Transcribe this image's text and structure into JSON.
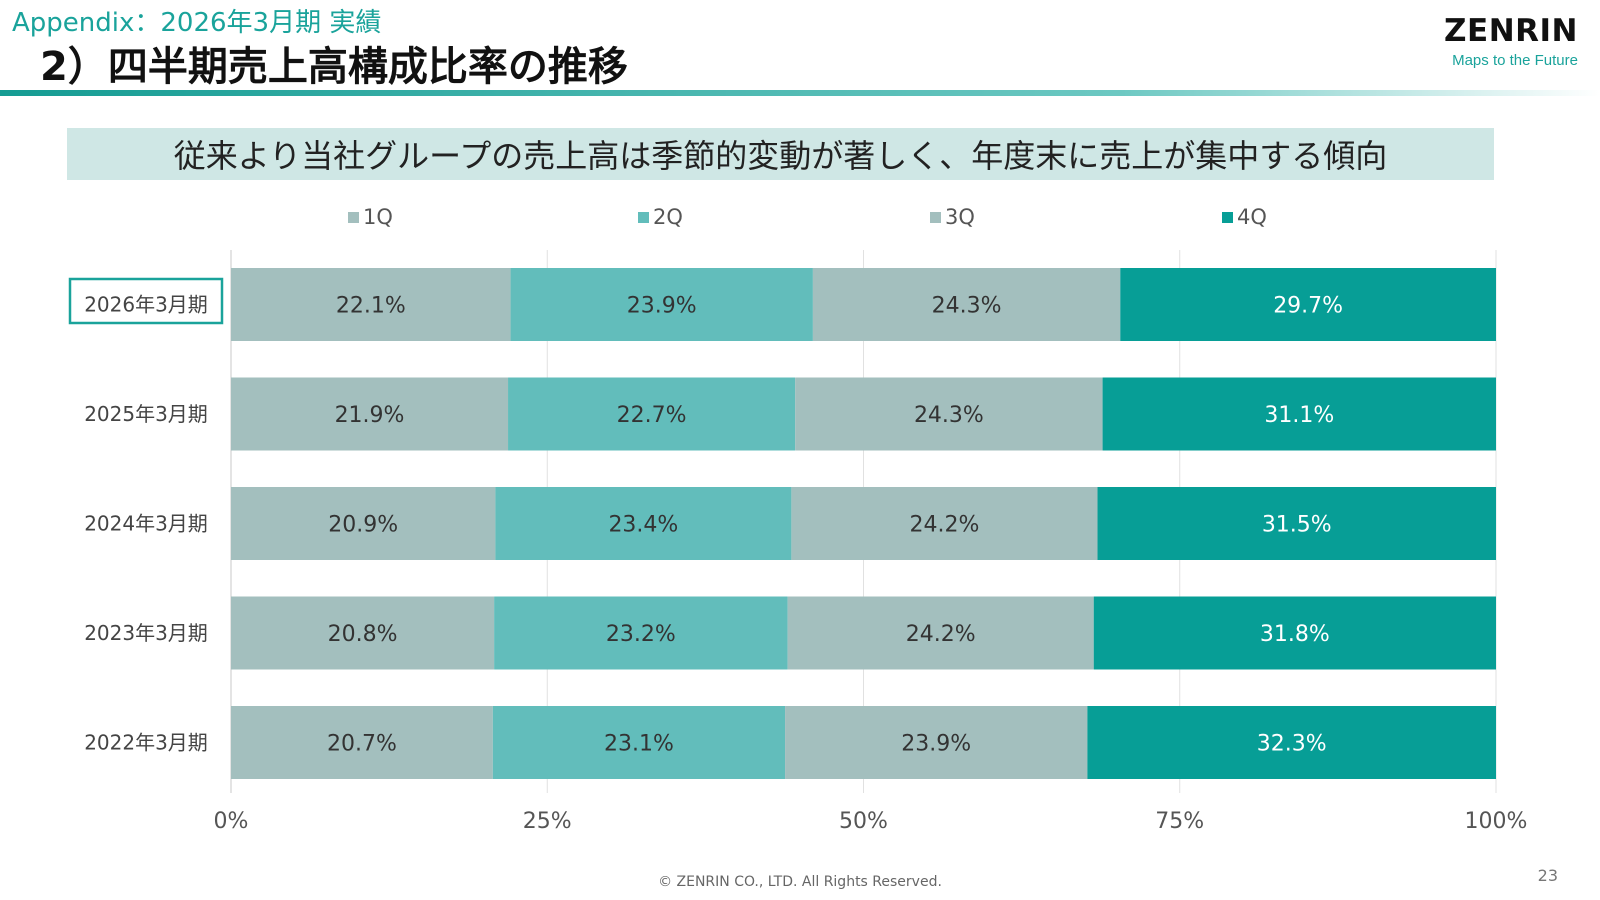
{
  "header": {
    "subtitle": "Appendix：2026年3月期 実績",
    "title": "2）四半期売上高構成比率の推移",
    "logo": "ZENRIN",
    "tagline": "Maps to the Future"
  },
  "banner": "従来より当社グループの売上高は季節的変動が著しく、年度末に売上が集中する傾向",
  "footer": {
    "copyright": "© ZENRIN CO., LTD. All Rights Reserved.",
    "page_number": "23"
  },
  "colors": {
    "q1": "#a3bfbe",
    "q2": "#62bdbb",
    "q3": "#a3bfbe",
    "q4": "#079e96",
    "accent": "#1aa39b"
  },
  "chart_data": {
    "type": "bar",
    "orientation": "horizontal",
    "stacked": "percent",
    "categories": [
      "2026年3月期",
      "2025年3月期",
      "2024年3月期",
      "2023年3月期",
      "2022年3月期"
    ],
    "highlighted_category": "2026年3月期",
    "series": [
      {
        "name": "1Q",
        "values": [
          22.1,
          21.9,
          20.9,
          20.8,
          20.7
        ],
        "labels": [
          "22.1%",
          "21.9%",
          "20.9%",
          "20.8%",
          "20.7%"
        ]
      },
      {
        "name": "2Q",
        "values": [
          23.9,
          22.7,
          23.4,
          23.2,
          23.1
        ],
        "labels": [
          "23.9%",
          "22.7%",
          "23.4%",
          "23.2%",
          "23.1%"
        ]
      },
      {
        "name": "3Q",
        "values": [
          24.3,
          24.3,
          24.2,
          24.2,
          23.9
        ],
        "labels": [
          "24.3%",
          "24.3%",
          "24.2%",
          "24.2%",
          "23.9%"
        ]
      },
      {
        "name": "4Q",
        "values": [
          29.7,
          31.1,
          31.5,
          31.8,
          32.3
        ],
        "labels": [
          "29.7%",
          "31.1%",
          "31.5%",
          "31.8%",
          "32.3%"
        ]
      }
    ],
    "xlim": [
      0,
      100
    ],
    "xticks": [
      0,
      25,
      50,
      75,
      100
    ],
    "xtick_labels": [
      "0%",
      "25%",
      "50%",
      "75%",
      "100%"
    ],
    "grid": true,
    "legend_position": "top"
  }
}
